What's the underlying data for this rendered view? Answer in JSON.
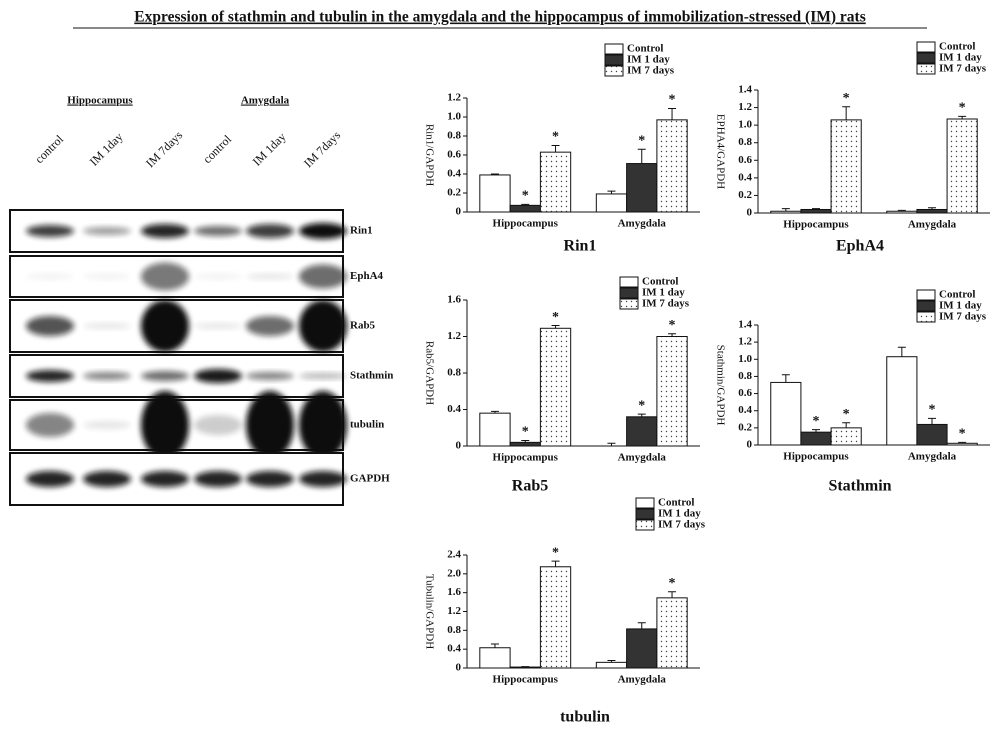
{
  "figure_title": "Expression of stathmin and tubulin in the amygdala and the hippocampus of immobilization-stressed (IM) rats",
  "blot": {
    "groups": [
      "Hippocampus",
      "Amygdala"
    ],
    "lanes": [
      "control",
      "IM 1day",
      "IM 7days",
      "control",
      "IM 1day",
      "IM 7days"
    ],
    "rows": [
      "Rin1",
      "EphA4",
      "Rab5",
      "Stathmin",
      "tubulin",
      "GAPDH"
    ]
  },
  "chart_data": [
    {
      "type": "bar",
      "title": "Rin1",
      "y_label": "Rin1/GAPDH",
      "categories": [
        "Hippocampus",
        "Amygdala"
      ],
      "ylim": [
        0,
        1.2
      ],
      "yticks": [
        0,
        0.2,
        0.4,
        0.6,
        0.8,
        {
          "value": 1,
          "label": "1.0"
        },
        1.2
      ],
      "series": [
        {
          "name": "Control",
          "color": "#ffffff",
          "values": [
            0.39,
            0.19
          ],
          "errors": [
            0.01,
            0.03
          ],
          "significance": [
            null,
            null
          ]
        },
        {
          "name": "IM 1 day",
          "color": "#333333",
          "values": [
            0.07,
            0.51
          ],
          "errors": [
            0.01,
            0.15
          ],
          "significance": [
            "*",
            "*"
          ]
        },
        {
          "name": "IM 7 days",
          "color": "#ffffff",
          "pattern": "dots",
          "values": [
            0.63,
            0.97
          ],
          "errors": [
            0.07,
            0.12
          ],
          "significance": [
            "*",
            "*"
          ]
        }
      ]
    },
    {
      "type": "bar",
      "title": "EphA4",
      "y_label": "EPHA4/GAPDH",
      "categories": [
        "Hippocampus",
        "Amygdala"
      ],
      "ylim": [
        0,
        1.4
      ],
      "yticks": [
        0,
        0.2,
        0.4,
        0.6,
        0.8,
        {
          "value": 1,
          "label": "1.0"
        },
        1.2,
        1.4
      ],
      "series": [
        {
          "name": "Control",
          "color": "#ffffff",
          "values": [
            0.02,
            0.02
          ],
          "errors": [
            0.03,
            0.01
          ],
          "significance": [
            null,
            null
          ]
        },
        {
          "name": "IM 1 day",
          "color": "#333333",
          "values": [
            0.04,
            0.04
          ],
          "errors": [
            0.01,
            0.02
          ],
          "significance": [
            null,
            null
          ]
        },
        {
          "name": "IM 7 days",
          "color": "#ffffff",
          "pattern": "dots",
          "values": [
            1.06,
            1.07
          ],
          "errors": [
            0.15,
            0.03
          ],
          "significance": [
            "*",
            "*"
          ]
        }
      ]
    },
    {
      "type": "bar",
      "title": "Rab5",
      "y_label": "Rab5/GAPDH",
      "categories": [
        "Hippocampus",
        "Amygdala"
      ],
      "ylim": [
        0,
        1.6
      ],
      "yticks": [
        0,
        0.4,
        0.8,
        1.2,
        1.6
      ],
      "series": [
        {
          "name": "Control",
          "color": "#ffffff",
          "values": [
            0.36,
            0.0
          ],
          "errors": [
            0.02,
            0.03
          ],
          "significance": [
            null,
            null
          ]
        },
        {
          "name": "IM 1 day",
          "color": "#333333",
          "values": [
            0.04,
            0.32
          ],
          "errors": [
            0.02,
            0.03
          ],
          "significance": [
            "*",
            "*"
          ]
        },
        {
          "name": "IM 7 days",
          "color": "#ffffff",
          "pattern": "dots",
          "values": [
            1.29,
            1.2
          ],
          "errors": [
            0.03,
            0.03
          ],
          "significance": [
            "*",
            "*"
          ]
        }
      ]
    },
    {
      "type": "bar",
      "title": "Stathmin",
      "y_label": "Stathmin/GAPDH",
      "categories": [
        "Hippocampus",
        "Amygdala"
      ],
      "ylim": [
        0,
        1.4
      ],
      "yticks": [
        0,
        0.2,
        0.4,
        0.6,
        0.8,
        {
          "value": 1,
          "label": "1.0"
        },
        1.2,
        1.4
      ],
      "series": [
        {
          "name": "Control",
          "color": "#ffffff",
          "values": [
            0.73,
            1.03
          ],
          "errors": [
            0.09,
            0.11
          ],
          "significance": [
            null,
            null
          ]
        },
        {
          "name": "IM 1 day",
          "color": "#333333",
          "values": [
            0.15,
            0.24
          ],
          "errors": [
            0.03,
            0.07
          ],
          "significance": [
            "*",
            "*"
          ]
        },
        {
          "name": "IM 7 days",
          "color": "#ffffff",
          "pattern": "dots",
          "values": [
            0.2,
            0.02
          ],
          "errors": [
            0.06,
            0.01
          ],
          "significance": [
            "*",
            "*"
          ]
        }
      ]
    },
    {
      "type": "bar",
      "title": "tubulin",
      "y_label": "Tubulin/GAPDH",
      "categories": [
        "Hippocampus",
        "Amygdala"
      ],
      "ylim": [
        0,
        2.4
      ],
      "yticks": [
        0,
        0.4,
        0.8,
        1.2,
        1.6,
        {
          "value": 2,
          "label": "2.0"
        },
        2.4
      ],
      "series": [
        {
          "name": "Control",
          "color": "#ffffff",
          "values": [
            0.43,
            0.12
          ],
          "errors": [
            0.08,
            0.04
          ],
          "significance": [
            null,
            null
          ]
        },
        {
          "name": "IM 1 day",
          "color": "#333333",
          "values": [
            0.02,
            0.83
          ],
          "errors": [
            0.01,
            0.13
          ],
          "significance": [
            null,
            null
          ]
        },
        {
          "name": "IM 7 days",
          "color": "#ffffff",
          "pattern": "dots",
          "values": [
            2.15,
            1.49
          ],
          "errors": [
            0.12,
            0.13
          ],
          "significance": [
            "*",
            "*"
          ]
        }
      ]
    }
  ]
}
